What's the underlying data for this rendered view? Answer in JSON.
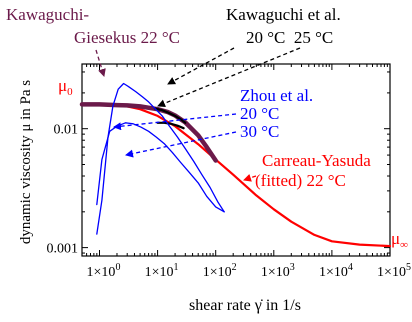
{
  "chart_data": {
    "type": "line",
    "xlabel": "shear rate γ̇ in 1/s",
    "ylabel": "dynamic viscosity μ in Pa s",
    "xscale": "log",
    "yscale": "log",
    "xlim": [
      0.5,
      100000
    ],
    "ylim": [
      0.00085,
      0.035
    ],
    "grid": false,
    "x_tick_labels": [
      "1×10",
      "1×10",
      "1×10",
      "1×10",
      "1×10",
      "1×10"
    ],
    "x_tick_exponents": [
      "0",
      "1",
      "2",
      "3",
      "4",
      "5"
    ],
    "x_tick_values": [
      1,
      10,
      100,
      1000,
      10000,
      100000
    ],
    "y_tick_labels": [
      "0.001",
      "0.01"
    ],
    "y_tick_values": [
      0.001,
      0.01
    ],
    "series": [
      {
        "name": "Carreau-Yasuda (fitted) 22 °C",
        "color": "#ff0000",
        "x": [
          0.5,
          1,
          3,
          5,
          10,
          20,
          50,
          100,
          200,
          500,
          1000,
          2000,
          5000,
          10000,
          30000,
          100000
        ],
        "y": [
          0.016,
          0.0159,
          0.0154,
          0.0146,
          0.0128,
          0.0105,
          0.0074,
          0.0055,
          0.0041,
          0.00275,
          0.0021,
          0.00165,
          0.00128,
          0.00113,
          0.00106,
          0.00103
        ]
      },
      {
        "name": "Kawaguchi-Giesekus 22 °C",
        "color": "#6b1a4a",
        "x": [
          0.5,
          1,
          2,
          3,
          5,
          10,
          15,
          20,
          30,
          50,
          70,
          100
        ],
        "y": [
          0.016,
          0.016,
          0.0158,
          0.0157,
          0.0154,
          0.0146,
          0.0138,
          0.0129,
          0.0113,
          0.0088,
          0.007,
          0.0054
        ]
      },
      {
        "name": "Kawaguchi et al. 20 °C",
        "color": "#000000",
        "x": [
          9,
          12,
          16,
          20,
          25,
          30
        ],
        "y": [
          0.0148,
          0.0143,
          0.0135,
          0.0128,
          0.012,
          0.0112
        ]
      },
      {
        "name": "Kawaguchi et al. 25 °C",
        "color": "#000000",
        "x": [
          10,
          13,
          17,
          22,
          28
        ],
        "y": [
          0.0112,
          0.0112,
          0.011,
          0.0106,
          0.0101
        ]
      },
      {
        "name": "Zhou et al. 20 °C",
        "color": "#0000ff",
        "x": [
          0.9,
          1.1,
          1.4,
          1.7,
          2.1,
          2.6,
          3.2,
          4.2,
          5.5,
          7,
          9,
          12,
          16,
          22,
          30,
          42,
          58,
          80,
          110,
          140
        ],
        "y": [
          0.0013,
          0.0025,
          0.0085,
          0.0155,
          0.0215,
          0.024,
          0.0225,
          0.0205,
          0.0185,
          0.0168,
          0.0148,
          0.0128,
          0.0105,
          0.0085,
          0.0068,
          0.0053,
          0.0041,
          0.0032,
          0.0024,
          0.002
        ]
      },
      {
        "name": "Zhou et al. 30 °C",
        "color": "#0000ff",
        "x": [
          0.9,
          1.1,
          1.5,
          2,
          2.8,
          3.8,
          5.2,
          7,
          9.5,
          13,
          18,
          25,
          35,
          50,
          70,
          100,
          140
        ],
        "y": [
          0.0023,
          0.0055,
          0.0095,
          0.0105,
          0.0112,
          0.011,
          0.0103,
          0.0095,
          0.0085,
          0.0075,
          0.0063,
          0.0052,
          0.0043,
          0.0035,
          0.0027,
          0.0022,
          0.002
        ]
      }
    ],
    "annotations": {
      "mu0_symbol": "μ",
      "mu0_subscript": "0",
      "muinf_symbol": "μ",
      "muinf_subscript": "∞",
      "kg_label_line1": "Kawaguchi-",
      "kg_label_line2": "Giesekus 22 °C",
      "kaw_label_line1": "Kawaguchi et al.",
      "kaw_label_line2": "20 °C  25 °C",
      "zhou_label_line1": "Zhou et al.",
      "zhou_label_line2": "20 °C",
      "zhou_label_line3": "30 °C",
      "cy_label_line1": "Carreau-Yasuda",
      "cy_label_line2": "(fitted) 22 °C"
    }
  }
}
